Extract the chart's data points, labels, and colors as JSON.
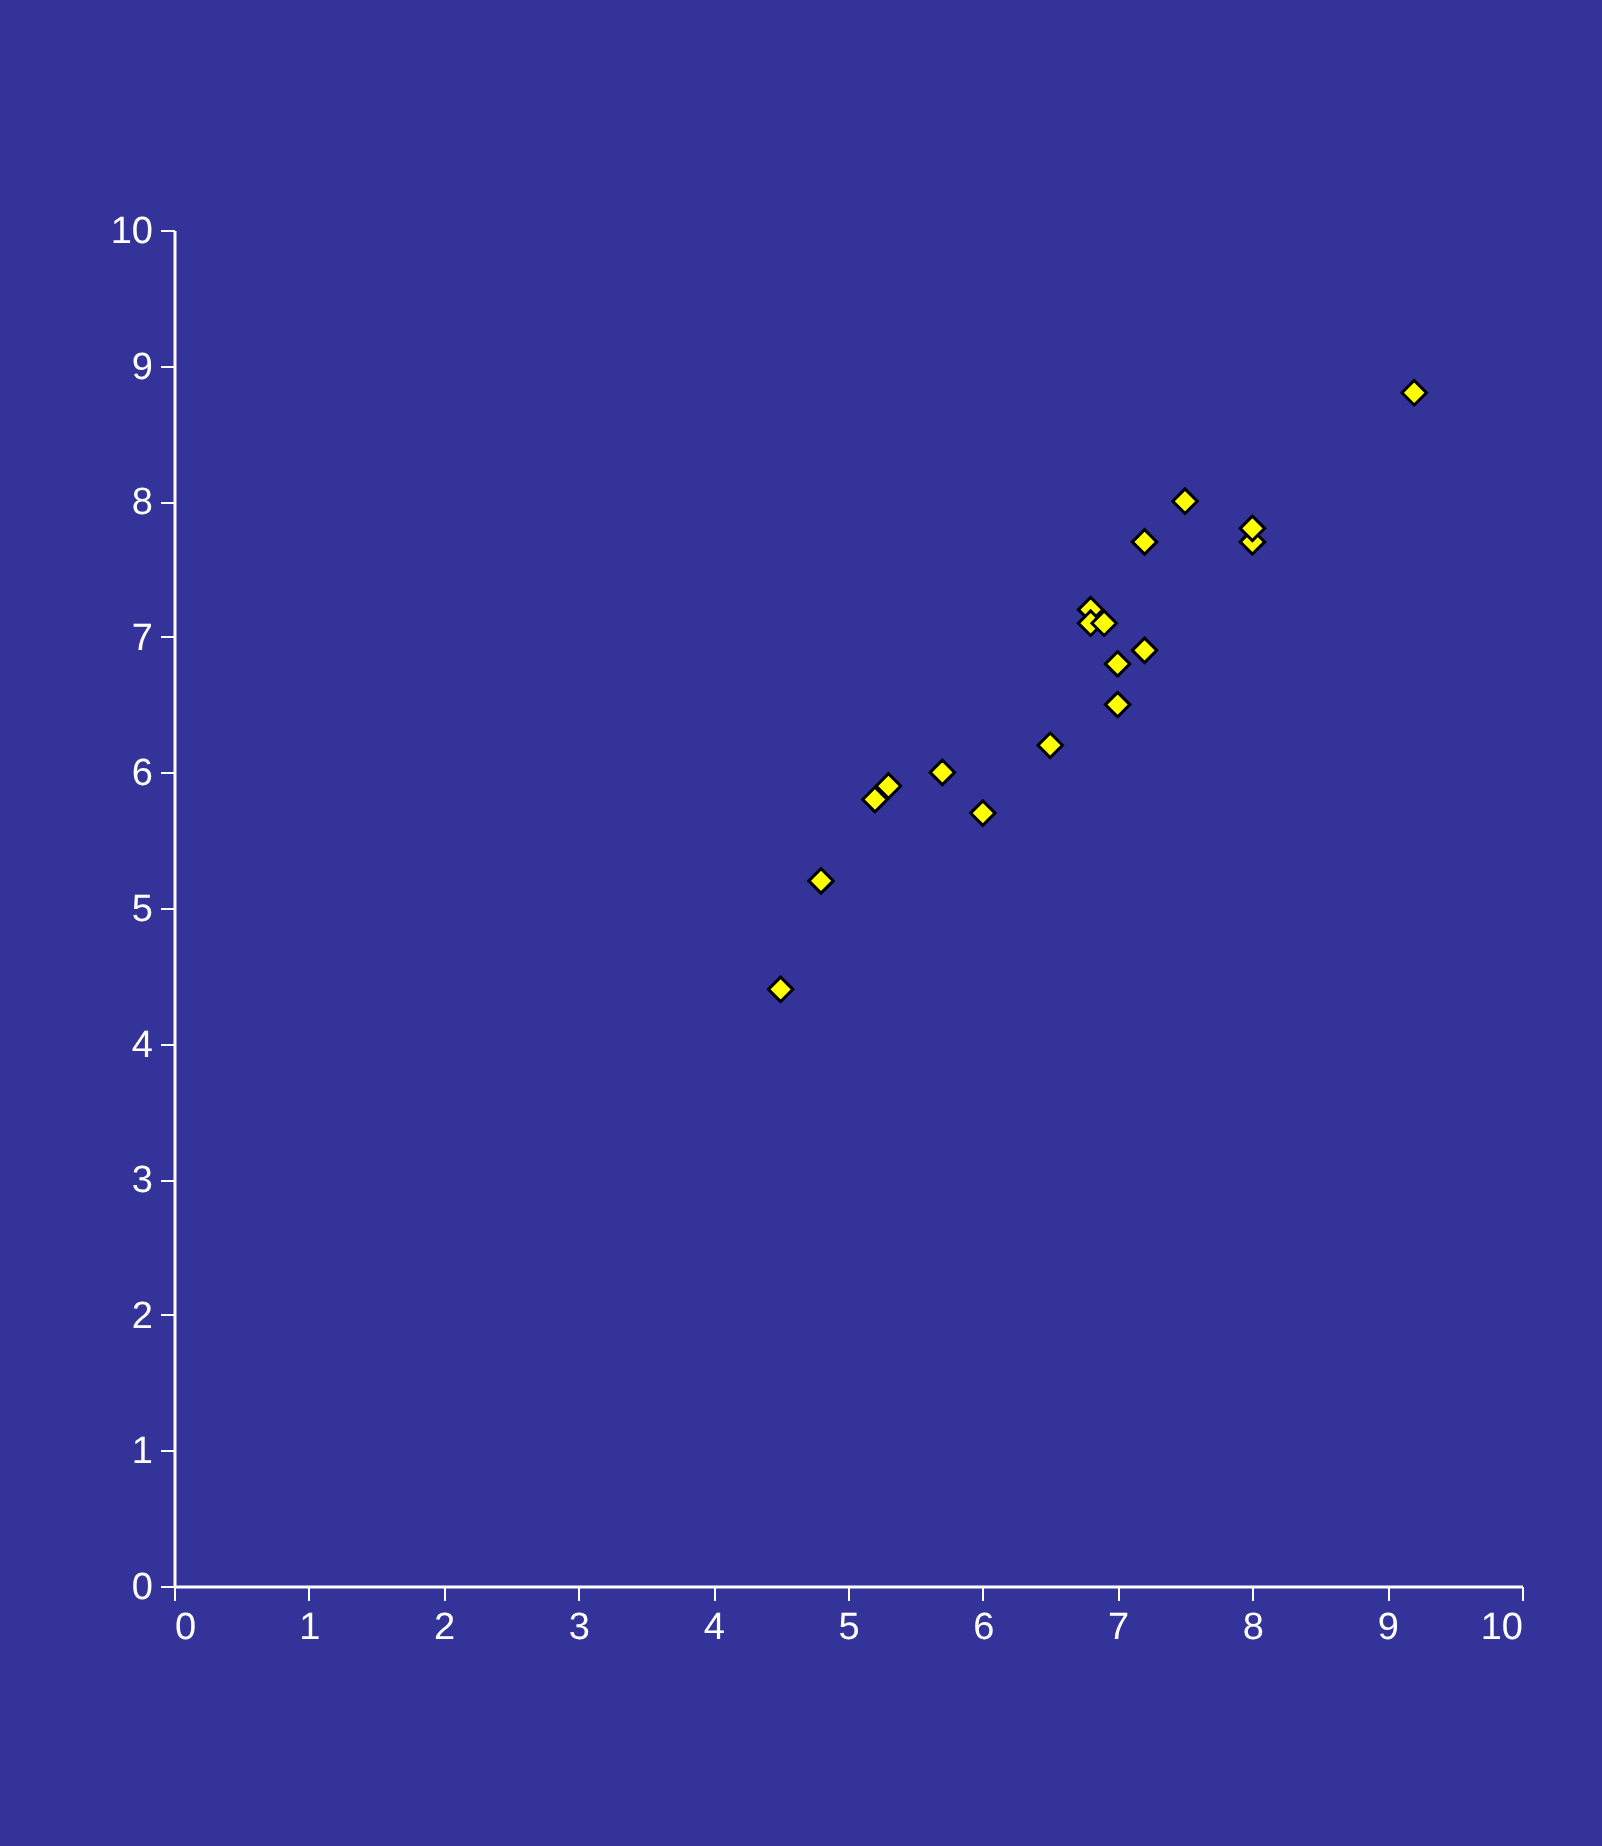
{
  "chart_data": {
    "type": "scatter",
    "marker": "diamond",
    "grid": false,
    "xlim": [
      0,
      10
    ],
    "ylim": [
      0,
      10
    ],
    "xticks": [
      0,
      1,
      2,
      3,
      4,
      5,
      6,
      7,
      8,
      9,
      10
    ],
    "yticks": [
      0,
      1,
      2,
      3,
      4,
      5,
      6,
      7,
      8,
      9,
      10
    ],
    "series": [
      {
        "color": "#ffff00",
        "x": [
          4.5,
          4.8,
          5.2,
          5.3,
          5.7,
          6.0,
          6.5,
          6.8,
          6.8,
          6.9,
          7.0,
          7.0,
          7.2,
          7.2,
          7.5,
          8.0,
          8.0,
          9.2
        ],
        "values": [
          4.4,
          5.2,
          5.8,
          5.9,
          6.0,
          5.7,
          6.2,
          7.2,
          7.1,
          7.1,
          6.8,
          6.5,
          6.9,
          7.7,
          8.0,
          7.7,
          7.8,
          8.8
        ]
      }
    ]
  }
}
